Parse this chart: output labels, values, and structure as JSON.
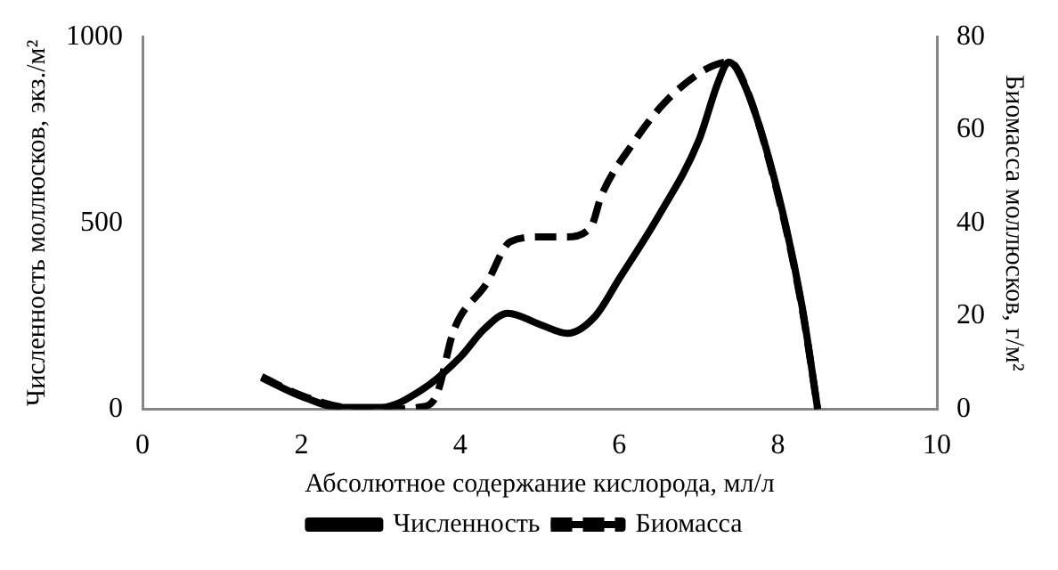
{
  "chart_data": {
    "type": "line",
    "xlabel": "Абсолютное содержание кислорода, мл/л",
    "ylabel": "Численность моллюсков, экз./м²",
    "y2label": "Биомасса моллюсков, г/м²",
    "xlim": [
      0,
      10
    ],
    "xticks": [
      0,
      2,
      4,
      6,
      8,
      10
    ],
    "ylim": [
      0,
      1000
    ],
    "yticks": [
      0,
      500,
      1000
    ],
    "y2lim": [
      0,
      80
    ],
    "y2ticks": [
      0,
      20,
      40,
      60,
      80
    ],
    "grid": false,
    "legend": "bottom",
    "marker": "none",
    "series": [
      {
        "name": "Численность",
        "color": "#000000",
        "line_style": "solid",
        "x": [
          1.5,
          2,
          2.5,
          3,
          3.5,
          4,
          4.3,
          4.6,
          5,
          5.35,
          5.7,
          6,
          6.5,
          7,
          7.25,
          7.38,
          7.6,
          8,
          8.3,
          8.5
        ],
        "values": [
          85,
          35,
          5,
          5,
          50,
          140,
          215,
          258,
          228,
          204,
          250,
          350,
          520,
          720,
          880,
          932,
          860,
          580,
          280,
          0
        ]
      },
      {
        "name": "Биомасса",
        "color": "#000000",
        "line_style": "dashed",
        "axis": "y2",
        "x": [
          1.5,
          2,
          2.5,
          3,
          3.5,
          3.7,
          3.92,
          4.33,
          4.63,
          5.0,
          5.32,
          5.64,
          5.78,
          6.17,
          6.56,
          7.09,
          7.39,
          7.6,
          8,
          8.3,
          8.5
        ],
        "values": [
          7,
          3,
          0.5,
          0,
          0.5,
          3,
          17,
          27,
          36,
          37,
          37,
          39,
          46,
          57,
          65.6,
          73,
          74.6,
          69,
          46,
          22,
          0
        ]
      }
    ]
  }
}
